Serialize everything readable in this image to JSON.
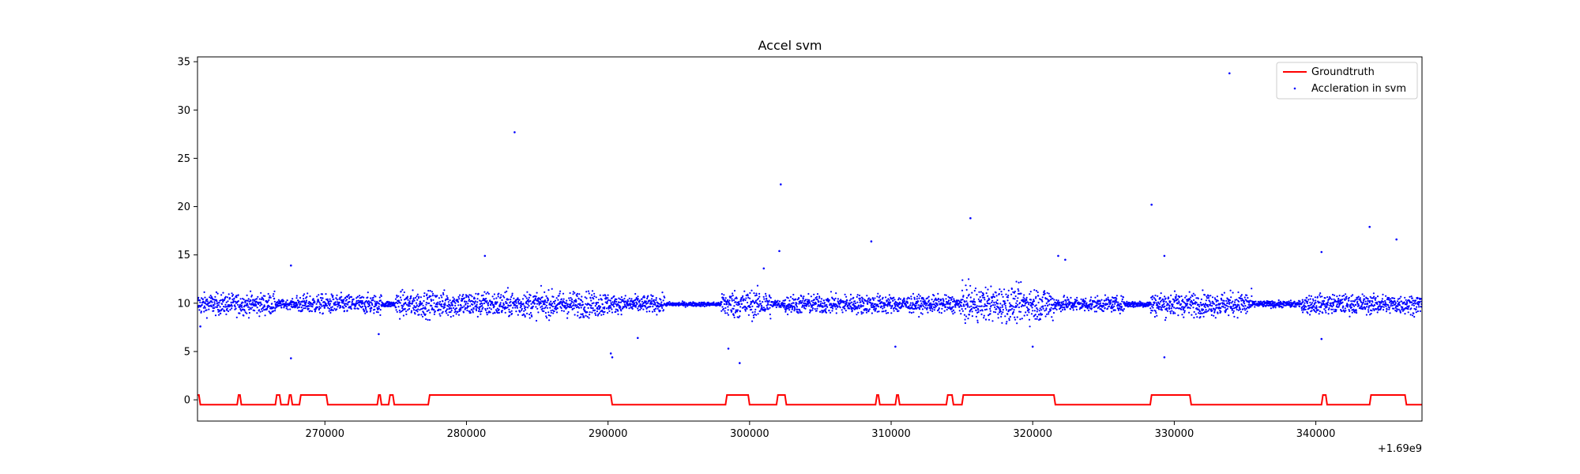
{
  "chart_data": {
    "type": "scatter",
    "title": "Accel svm",
    "xlabel": "",
    "ylabel": "",
    "x_offset_text": "+1.69e9",
    "xlim": [
      261000,
      347500
    ],
    "ylim": [
      -2.2,
      35.5
    ],
    "x_ticks": [
      270000,
      280000,
      290000,
      300000,
      310000,
      320000,
      330000,
      340000
    ],
    "x_tick_labels": [
      "270000",
      "280000",
      "290000",
      "300000",
      "310000",
      "320000",
      "330000",
      "340000"
    ],
    "y_ticks": [
      0,
      5,
      10,
      15,
      20,
      25,
      30,
      35
    ],
    "y_tick_labels": [
      "0",
      "5",
      "10",
      "15",
      "20",
      "25",
      "30",
      "35"
    ],
    "grid": false,
    "legend_position": "top-right",
    "series": [
      {
        "name": "Groundtruth",
        "kind": "line",
        "color": "#ff0000",
        "x": [
          261000,
          261100,
          261200,
          263800,
          263900,
          264000,
          264100,
          266500,
          266600,
          266800,
          266900,
          267400,
          267500,
          267600,
          267700,
          268200,
          268300,
          270100,
          270200,
          273700,
          273800,
          273900,
          274000,
          274500,
          274600,
          274800,
          274900,
          277300,
          277400,
          290200,
          290300,
          298300,
          298400,
          299900,
          300000,
          301900,
          302000,
          302500,
          302600,
          308900,
          309000,
          309100,
          309200,
          310300,
          310400,
          310500,
          310600,
          313900,
          314000,
          314300,
          314400,
          315000,
          315100,
          321500,
          321600,
          328300,
          328400,
          331100,
          331200,
          340400,
          340500,
          340700,
          340800,
          343800,
          343900,
          346300,
          346400,
          347500
        ],
        "y": [
          0.5,
          0.5,
          -0.5,
          -0.5,
          0.5,
          0.5,
          -0.5,
          -0.5,
          0.5,
          0.5,
          -0.5,
          -0.5,
          0.5,
          0.5,
          -0.5,
          -0.5,
          0.5,
          0.5,
          -0.5,
          -0.5,
          0.5,
          0.5,
          -0.5,
          -0.5,
          0.5,
          0.5,
          -0.5,
          -0.5,
          0.5,
          0.5,
          -0.5,
          -0.5,
          0.5,
          0.5,
          -0.5,
          -0.5,
          0.5,
          0.5,
          -0.5,
          -0.5,
          0.5,
          0.5,
          -0.5,
          -0.5,
          0.5,
          0.5,
          -0.5,
          -0.5,
          0.5,
          0.5,
          -0.5,
          -0.5,
          0.5,
          0.5,
          -0.5,
          -0.5,
          0.5,
          0.5,
          -0.5,
          -0.5,
          0.5,
          0.5,
          -0.5,
          -0.5,
          0.5,
          0.5,
          -0.5,
          -0.5
        ]
      },
      {
        "name": "Accleration in svm",
        "kind": "scatter",
        "color": "#0000ff",
        "x_start": 261000,
        "x_end": 347500,
        "baseline": 9.9,
        "noise_bands": [
          {
            "from": 261000,
            "to": 266500,
            "spread": 1.0
          },
          {
            "from": 266500,
            "to": 268000,
            "spread": 0.4
          },
          {
            "from": 268000,
            "to": 274000,
            "spread": 0.9
          },
          {
            "from": 274000,
            "to": 275000,
            "spread": 0.3
          },
          {
            "from": 275000,
            "to": 290000,
            "spread": 1.2
          },
          {
            "from": 290000,
            "to": 294000,
            "spread": 0.8
          },
          {
            "from": 294000,
            "to": 298000,
            "spread": 0.2
          },
          {
            "from": 298000,
            "to": 301500,
            "spread": 1.3
          },
          {
            "from": 301500,
            "to": 302500,
            "spread": 0.4
          },
          {
            "from": 302500,
            "to": 310000,
            "spread": 0.9
          },
          {
            "from": 310000,
            "to": 315000,
            "spread": 0.8
          },
          {
            "from": 315000,
            "to": 321500,
            "spread": 1.6
          },
          {
            "from": 321500,
            "to": 326500,
            "spread": 0.7
          },
          {
            "from": 326500,
            "to": 328300,
            "spread": 0.3
          },
          {
            "from": 328300,
            "to": 335500,
            "spread": 1.1
          },
          {
            "from": 335500,
            "to": 339000,
            "spread": 0.3
          },
          {
            "from": 339000,
            "to": 347500,
            "spread": 0.9
          }
        ],
        "outliers": [
          {
            "x": 283400,
            "y": 27.7
          },
          {
            "x": 302200,
            "y": 22.3
          },
          {
            "x": 333900,
            "y": 33.8
          },
          {
            "x": 328400,
            "y": 20.2
          },
          {
            "x": 315600,
            "y": 18.8
          },
          {
            "x": 343800,
            "y": 17.9
          },
          {
            "x": 345700,
            "y": 16.6
          },
          {
            "x": 308600,
            "y": 16.4
          },
          {
            "x": 302100,
            "y": 15.4
          },
          {
            "x": 340400,
            "y": 15.3
          },
          {
            "x": 329300,
            "y": 14.9
          },
          {
            "x": 281300,
            "y": 14.9
          },
          {
            "x": 321800,
            "y": 14.9
          },
          {
            "x": 267600,
            "y": 13.9
          },
          {
            "x": 301000,
            "y": 13.6
          },
          {
            "x": 322300,
            "y": 14.5
          },
          {
            "x": 267600,
            "y": 4.3
          },
          {
            "x": 290300,
            "y": 4.4
          },
          {
            "x": 290200,
            "y": 4.8
          },
          {
            "x": 299300,
            "y": 3.8
          },
          {
            "x": 298500,
            "y": 5.3
          },
          {
            "x": 310300,
            "y": 5.5
          },
          {
            "x": 320000,
            "y": 5.5
          },
          {
            "x": 329300,
            "y": 4.4
          },
          {
            "x": 340400,
            "y": 6.3
          },
          {
            "x": 273800,
            "y": 6.8
          },
          {
            "x": 292100,
            "y": 6.4
          },
          {
            "x": 261200,
            "y": 7.6
          }
        ]
      }
    ]
  }
}
